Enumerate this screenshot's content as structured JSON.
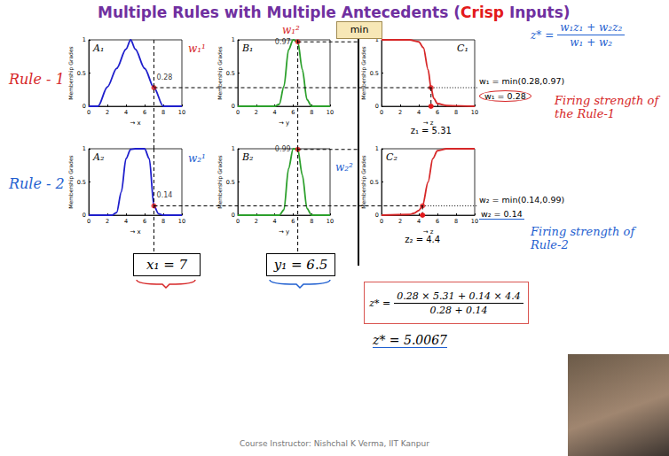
{
  "title": {
    "before": "Multiple Rules with Multiple Antecedents (",
    "highlight": "Crisp",
    "after": " Inputs)"
  },
  "defuzzification_formula": {
    "lhs": "z* =",
    "numerator": "w₁z₁ + w₂z₂",
    "denominator": "w₁ + w₂"
  },
  "operator": "min",
  "rules": [
    {
      "label": "Rule - 1",
      "color": "#d62728",
      "weight_notes": [
        "w₁¹",
        "w₁²"
      ],
      "firing_formula": "w₁ = min(0.28,0.97)",
      "firing_result": "w₁ = 0.28",
      "note": "Firing strength of the Rule-1"
    },
    {
      "label": "Rule - 2",
      "color": "#1f5fd0",
      "weight_notes": [
        "w₂¹",
        "w₂²"
      ],
      "firing_formula": "w₂ = min(0.14,0.99)",
      "firing_result": "w₂ = 0.14",
      "note": "Firing strength of Rule-2"
    }
  ],
  "inputs": [
    {
      "label": "x₁ = 7",
      "color": "#d62728"
    },
    {
      "label": "y₁ = 6.5",
      "color": "#1f5fd0"
    }
  ],
  "result": {
    "lhs": "z* =",
    "numerator": "0.28 × 5.31 + 0.14 × 4.4",
    "denominator": "0.28 + 0.14",
    "value_label": "z* = 5.0067"
  },
  "footer": "Course Instructor: Nishchal K Verma, IIT Kanpur",
  "chart_data": [
    {
      "type": "line",
      "title": "A₁",
      "color": "#1f1fcc",
      "x_label": "→ x",
      "y_label": "Membership Grades",
      "x": [
        0,
        1,
        2,
        3,
        4,
        4.5,
        5,
        6,
        7,
        8,
        9,
        10
      ],
      "values": [
        0,
        0,
        0.29,
        0.57,
        0.86,
        1,
        0.86,
        0.57,
        0.28,
        0,
        0,
        0
      ],
      "xlim": [
        0,
        10
      ],
      "xticks": [
        0,
        2,
        4,
        6,
        8,
        10
      ],
      "ylim": [
        0,
        1
      ],
      "yticks": [
        0,
        0.5,
        1
      ],
      "point": {
        "x": 7,
        "y": 0.28
      },
      "data_labels": true
    },
    {
      "type": "line",
      "title": "B₁",
      "color": "#2ca02c",
      "x_label": "→ y",
      "y_label": "Membership Grades",
      "x": [
        0,
        4,
        4.5,
        5,
        5.5,
        6,
        6.5,
        7,
        7.5,
        8,
        10
      ],
      "values": [
        0,
        0,
        0.03,
        0.3,
        0.85,
        1,
        0.97,
        0.55,
        0.1,
        0,
        0
      ],
      "xlim": [
        0,
        10
      ],
      "xticks": [
        0,
        2,
        4,
        6,
        8,
        10
      ],
      "ylim": [
        0,
        1
      ],
      "yticks": [
        0,
        0.5,
        1
      ],
      "point": {
        "x": 6.5,
        "y": 0.97
      },
      "data_labels": true
    },
    {
      "type": "line",
      "title": "C₁",
      "color": "#d62728",
      "x_label": "→ z",
      "y_label": "Membership Grades",
      "x": [
        0,
        3,
        4,
        4.5,
        5,
        5.31,
        5.6,
        6,
        7,
        10
      ],
      "values": [
        1,
        1,
        0.97,
        0.88,
        0.55,
        0.28,
        0.12,
        0.04,
        0.01,
        0
      ],
      "xlim": [
        0,
        10
      ],
      "xticks": [
        0,
        2,
        4,
        6,
        8,
        10
      ],
      "ylim": [
        0,
        1
      ],
      "yticks": [
        0,
        0.5,
        1
      ],
      "point": {
        "x": 5.31,
        "y": 0.28
      },
      "point_label": "z₁ = 5.31",
      "data_labels": false
    },
    {
      "type": "line",
      "title": "A₂",
      "color": "#1f1fcc",
      "x_label": "→ x",
      "y_label": "Membership Grades",
      "x": [
        0,
        2.5,
        3,
        3.5,
        4,
        4.5,
        5,
        6,
        6.5,
        7,
        7.5,
        8,
        10
      ],
      "values": [
        0,
        0,
        0.04,
        0.35,
        0.85,
        0.99,
        1,
        1,
        0.85,
        0.14,
        0.02,
        0,
        0
      ],
      "xlim": [
        0,
        10
      ],
      "xticks": [
        0,
        2,
        4,
        6,
        8,
        10
      ],
      "ylim": [
        0,
        1
      ],
      "yticks": [
        0,
        0.5,
        1
      ],
      "point": {
        "x": 7,
        "y": 0.14
      },
      "data_labels": true
    },
    {
      "type": "line",
      "title": "B₂",
      "color": "#2ca02c",
      "x_label": "→ y",
      "y_label": "Membership Grades",
      "x": [
        0,
        4.5,
        5,
        5.5,
        6,
        6.5,
        7,
        7.5,
        8,
        10
      ],
      "values": [
        0,
        0,
        0.08,
        0.7,
        1,
        0.99,
        0.6,
        0.1,
        0,
        0
      ],
      "xlim": [
        0,
        10
      ],
      "xticks": [
        0,
        2,
        4,
        6,
        8,
        10
      ],
      "ylim": [
        0,
        1
      ],
      "yticks": [
        0,
        0.5,
        1
      ],
      "point": {
        "x": 6.5,
        "y": 0.99
      },
      "data_labels": true
    },
    {
      "type": "line",
      "title": "C₂",
      "color": "#d62728",
      "x_label": "→ z",
      "y_label": "Membership Grades",
      "x": [
        0,
        3,
        3.5,
        4,
        4.4,
        5,
        5.5,
        6,
        7,
        10
      ],
      "values": [
        0,
        0.01,
        0.03,
        0.07,
        0.14,
        0.5,
        0.85,
        0.97,
        1,
        1
      ],
      "xlim": [
        0,
        10
      ],
      "xticks": [
        0,
        2,
        4,
        6,
        8,
        10
      ],
      "ylim": [
        0,
        1
      ],
      "yticks": [
        0,
        0.5,
        1
      ],
      "point": {
        "x": 4.4,
        "y": 0.14
      },
      "point_label": "z₂ = 4.4",
      "data_labels": false
    }
  ]
}
